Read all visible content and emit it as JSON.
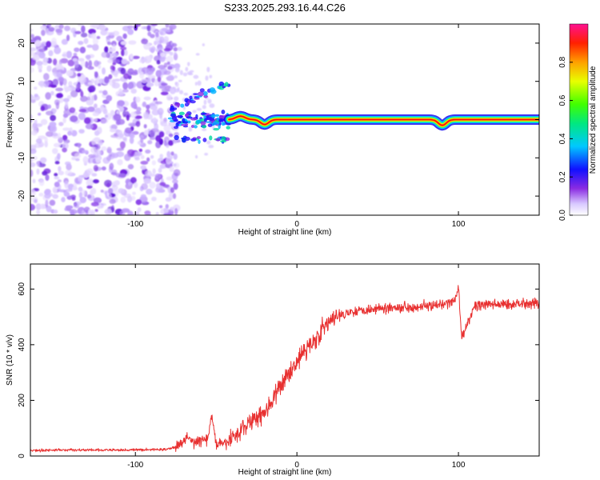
{
  "title": "S233.2025.293.16.44.C26",
  "colors": {
    "axis": "#000000",
    "snr_line": "#e83030",
    "background": "#ffffff"
  },
  "chart_data": [
    {
      "type": "heatmap",
      "name": "spectrogram",
      "xlabel": "Height of straight line (km)",
      "ylabel": "Frequency (Hz)",
      "xlim": [
        -165,
        150
      ],
      "ylim": [
        -25,
        25
      ],
      "xticks": [
        -100,
        0,
        100
      ],
      "yticks": [
        -20,
        -10,
        0,
        10,
        20
      ],
      "colorbar": {
        "label": "Normalized spectral amplitude",
        "range": [
          0.0,
          1.0
        ],
        "ticks": [
          0.0,
          0.2,
          0.4,
          0.6,
          0.8
        ],
        "colormap": "rainbow (white-violet-blue-cyan-green-yellow-red-magenta)"
      },
      "features": [
        {
          "description": "diffuse violet noise",
          "x_range": [
            -165,
            -78
          ],
          "y_range": [
            -25,
            25
          ],
          "amplitude": 0.1
        },
        {
          "description": "irregular onset bursts",
          "x_range": [
            -78,
            -42
          ],
          "y_range": [
            -8,
            12
          ],
          "amplitude": 0.35
        },
        {
          "description": "narrow carrier near 0 Hz",
          "x_range": [
            -42,
            150
          ],
          "y_center": 0,
          "amplitude": 1.0
        }
      ],
      "carrier_dips": [
        {
          "x": -20,
          "y": -1.3
        },
        {
          "x": 90,
          "y": -1.5
        }
      ]
    },
    {
      "type": "line",
      "name": "snr",
      "xlabel": "Height of straight line (km)",
      "ylabel": "SNR (10 * v/v)",
      "xlim": [
        -165,
        150
      ],
      "ylim": [
        0,
        690
      ],
      "xticks": [
        -100,
        0,
        100
      ],
      "yticks": [
        0,
        200,
        400,
        600
      ],
      "series": [
        {
          "name": "SNR",
          "color": "#e83030",
          "x": [
            -165,
            -140,
            -120,
            -100,
            -80,
            -72,
            -68,
            -65,
            -60,
            -55,
            -53,
            -50,
            -45,
            -40,
            -35,
            -30,
            -25,
            -20,
            -15,
            -10,
            -5,
            0,
            5,
            10,
            15,
            20,
            25,
            30,
            40,
            50,
            60,
            70,
            80,
            90,
            98,
            100,
            102,
            110,
            120,
            130,
            140,
            150
          ],
          "y": [
            20,
            22,
            21,
            22,
            24,
            40,
            70,
            50,
            55,
            60,
            150,
            45,
            40,
            65,
            90,
            120,
            140,
            160,
            200,
            250,
            300,
            340,
            380,
            410,
            450,
            480,
            500,
            515,
            525,
            530,
            535,
            535,
            540,
            540,
            560,
            610,
            420,
            540,
            545,
            545,
            550,
            550
          ]
        }
      ]
    }
  ]
}
